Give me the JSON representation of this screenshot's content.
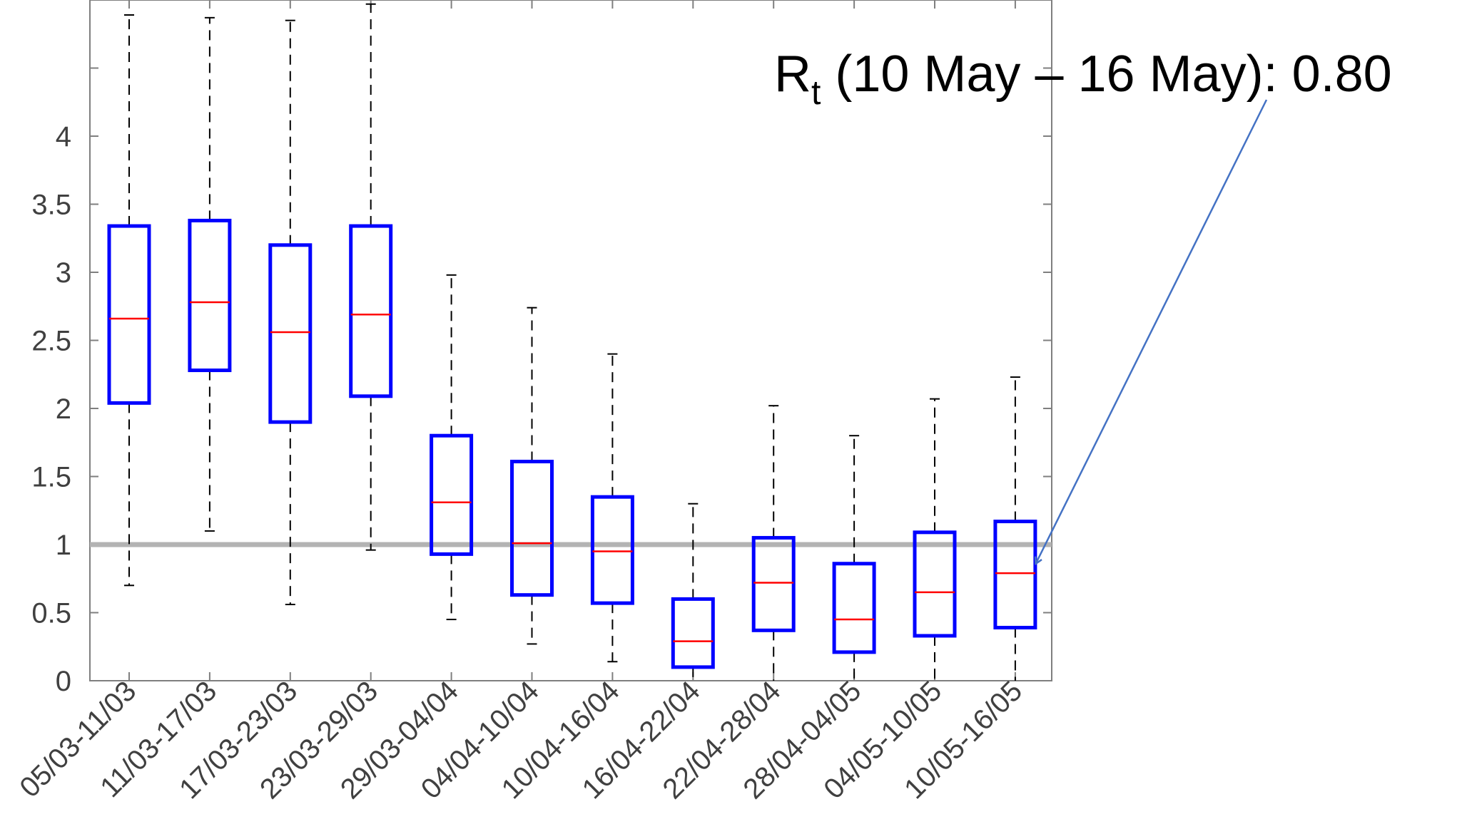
{
  "chart_data": {
    "type": "box",
    "title": "",
    "xlabel": "",
    "ylabel": "",
    "ylim": [
      0,
      5
    ],
    "yticks": [
      0,
      0.5,
      1,
      1.5,
      2,
      2.5,
      3,
      3.5,
      4
    ],
    "ytick_labels": [
      "0",
      "0.5",
      "1",
      "1.5",
      "2",
      "2.5",
      "3",
      "3.5",
      "4"
    ],
    "categories": [
      "05/03-11/03",
      "11/03-17/03",
      "17/03-23/03",
      "23/03-29/03",
      "29/03-04/04",
      "04/04-10/04",
      "10/04-16/04",
      "16/04-22/04",
      "22/04-28/04",
      "28/04-04/05",
      "04/05-10/05",
      "10/05-16/05"
    ],
    "boxes": [
      {
        "whisker_low": 0.7,
        "q1": 2.04,
        "median": 2.66,
        "q3": 3.34,
        "whisker_high": 4.89
      },
      {
        "whisker_low": 1.1,
        "q1": 2.28,
        "median": 2.78,
        "q3": 3.38,
        "whisker_high": 4.87
      },
      {
        "whisker_low": 0.56,
        "q1": 1.9,
        "median": 2.56,
        "q3": 3.2,
        "whisker_high": 4.85
      },
      {
        "whisker_low": 0.96,
        "q1": 2.09,
        "median": 2.69,
        "q3": 3.34,
        "whisker_high": 4.97
      },
      {
        "whisker_low": 0.45,
        "q1": 0.93,
        "median": 1.31,
        "q3": 1.8,
        "whisker_high": 2.98
      },
      {
        "whisker_low": 0.27,
        "q1": 0.63,
        "median": 1.01,
        "q3": 1.61,
        "whisker_high": 2.74
      },
      {
        "whisker_low": 0.14,
        "q1": 0.57,
        "median": 0.95,
        "q3": 1.35,
        "whisker_high": 2.4
      },
      {
        "whisker_low": 0.0,
        "q1": 0.1,
        "median": 0.29,
        "q3": 0.6,
        "whisker_high": 1.3
      },
      {
        "whisker_low": 0.0,
        "q1": 0.37,
        "median": 0.72,
        "q3": 1.05,
        "whisker_high": 2.02
      },
      {
        "whisker_low": 0.0,
        "q1": 0.21,
        "median": 0.45,
        "q3": 0.86,
        "whisker_high": 1.8
      },
      {
        "whisker_low": 0.0,
        "q1": 0.33,
        "median": 0.65,
        "q3": 1.09,
        "whisker_high": 2.07
      },
      {
        "whisker_low": 0.0,
        "q1": 0.39,
        "median": 0.79,
        "q3": 1.17,
        "whisker_high": 2.23
      }
    ],
    "reference_line": 1,
    "annotation": {
      "prefix": "R",
      "subscript": "t",
      "text": " (10 May – 16 May): 0.80",
      "points_to_category": "10/05-16/05"
    },
    "colors": {
      "box": "#0000ff",
      "median": "#ff0000",
      "whisker": "#000000",
      "reference_line": "#b3b3b3",
      "axes": "#7f7f7f",
      "arrow": "#4472c4"
    }
  }
}
